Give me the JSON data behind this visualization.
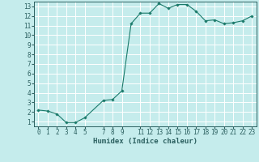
{
  "x": [
    0,
    1,
    2,
    3,
    4,
    5,
    7,
    8,
    9,
    10,
    11,
    12,
    13,
    14,
    15,
    16,
    17,
    18,
    19,
    20,
    21,
    22,
    23
  ],
  "y": [
    2.2,
    2.1,
    1.8,
    0.9,
    0.9,
    1.4,
    3.2,
    3.3,
    4.2,
    11.2,
    12.3,
    12.3,
    13.3,
    12.8,
    13.2,
    13.2,
    12.5,
    11.5,
    11.6,
    11.2,
    11.3,
    11.5,
    12.0
  ],
  "line_color": "#1a7a6a",
  "marker": "D",
  "marker_size": 1.8,
  "bg_color": "#c5ecec",
  "grid_color": "#ffffff",
  "xlabel": "Humidex (Indice chaleur)",
  "xlim": [
    -0.5,
    23.5
  ],
  "ylim": [
    0.5,
    13.5
  ],
  "yticks": [
    1,
    2,
    3,
    4,
    5,
    6,
    7,
    8,
    9,
    10,
    11,
    12,
    13
  ],
  "xticks": [
    0,
    1,
    2,
    3,
    4,
    5,
    7,
    8,
    9,
    11,
    12,
    13,
    14,
    15,
    16,
    17,
    18,
    19,
    20,
    21,
    22,
    23
  ],
  "xtick_labels": [
    "0",
    "1",
    "2",
    "3",
    "4",
    "5",
    "7",
    "8",
    "9",
    "11",
    "12",
    "13",
    "14",
    "15",
    "16",
    "17",
    "18",
    "19",
    "20",
    "21",
    "22",
    "23"
  ],
  "axis_color": "#2c6060",
  "tick_color": "#2c6060",
  "label_fontsize": 6.5,
  "tick_fontsize": 5.5,
  "linewidth": 0.8
}
